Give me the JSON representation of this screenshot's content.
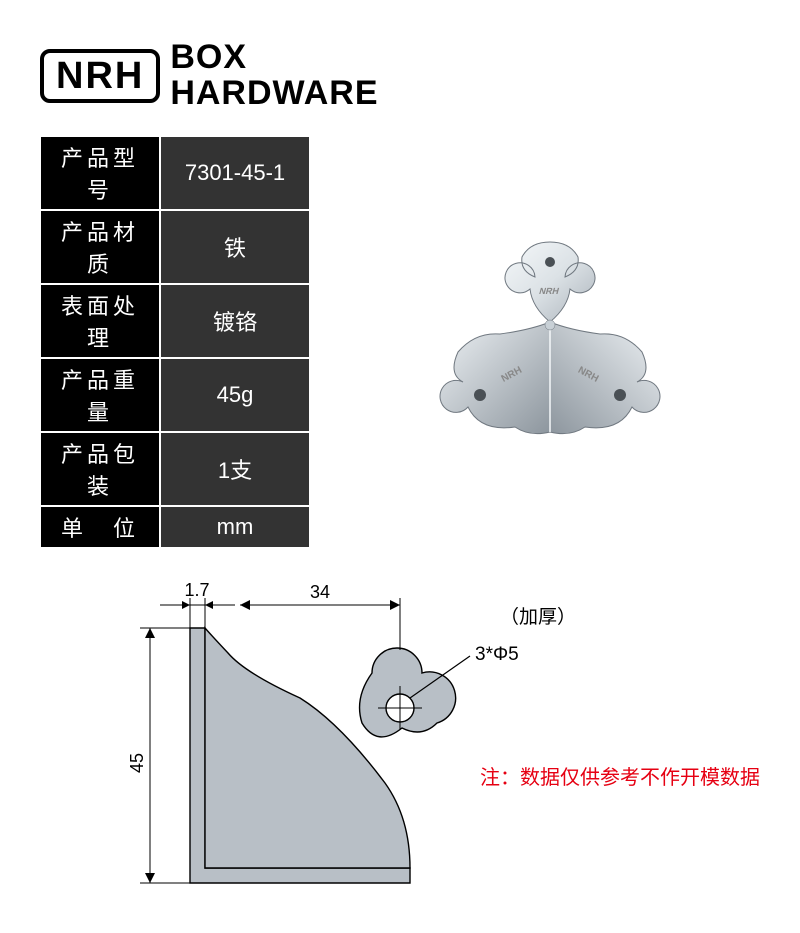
{
  "logo": {
    "badge": "NRH",
    "line1": "BOX",
    "line2": "HARDWARE"
  },
  "spec_table": {
    "label_bg": "#000000",
    "value_bg": "#333333",
    "text_color": "#ffffff",
    "rows": [
      {
        "label": "产品型号",
        "value": "7301-45-1"
      },
      {
        "label": "产品材质",
        "value": "铁"
      },
      {
        "label": "表面处理",
        "value": "镀铬"
      },
      {
        "label": "产品重量",
        "value": "45g"
      },
      {
        "label": "产品包装",
        "value": "1支"
      },
      {
        "label": "单　位",
        "value": "mm"
      }
    ]
  },
  "product_render": {
    "body_color": "#dce2e6",
    "highlight_color": "#f5f8fa",
    "shadow_color": "#9aa4ac",
    "edge_color": "#707880",
    "logo_stamp": "NRH"
  },
  "diagram": {
    "type": "engineering-drawing",
    "shape_fill": "#b8bfc6",
    "shape_stroke": "#000000",
    "stroke_width": 1.2,
    "dim_stroke": "#000000",
    "dim_fontsize": 18,
    "annot_fontsize": 19,
    "dims": {
      "thickness": "1.7",
      "width": "34",
      "height": "45",
      "hole_spec": "3*Φ5",
      "note": "（加厚）"
    }
  },
  "footnote": {
    "prefix": "注：",
    "text": "数据仅供参考不作开模数据",
    "color": "#e60012"
  }
}
